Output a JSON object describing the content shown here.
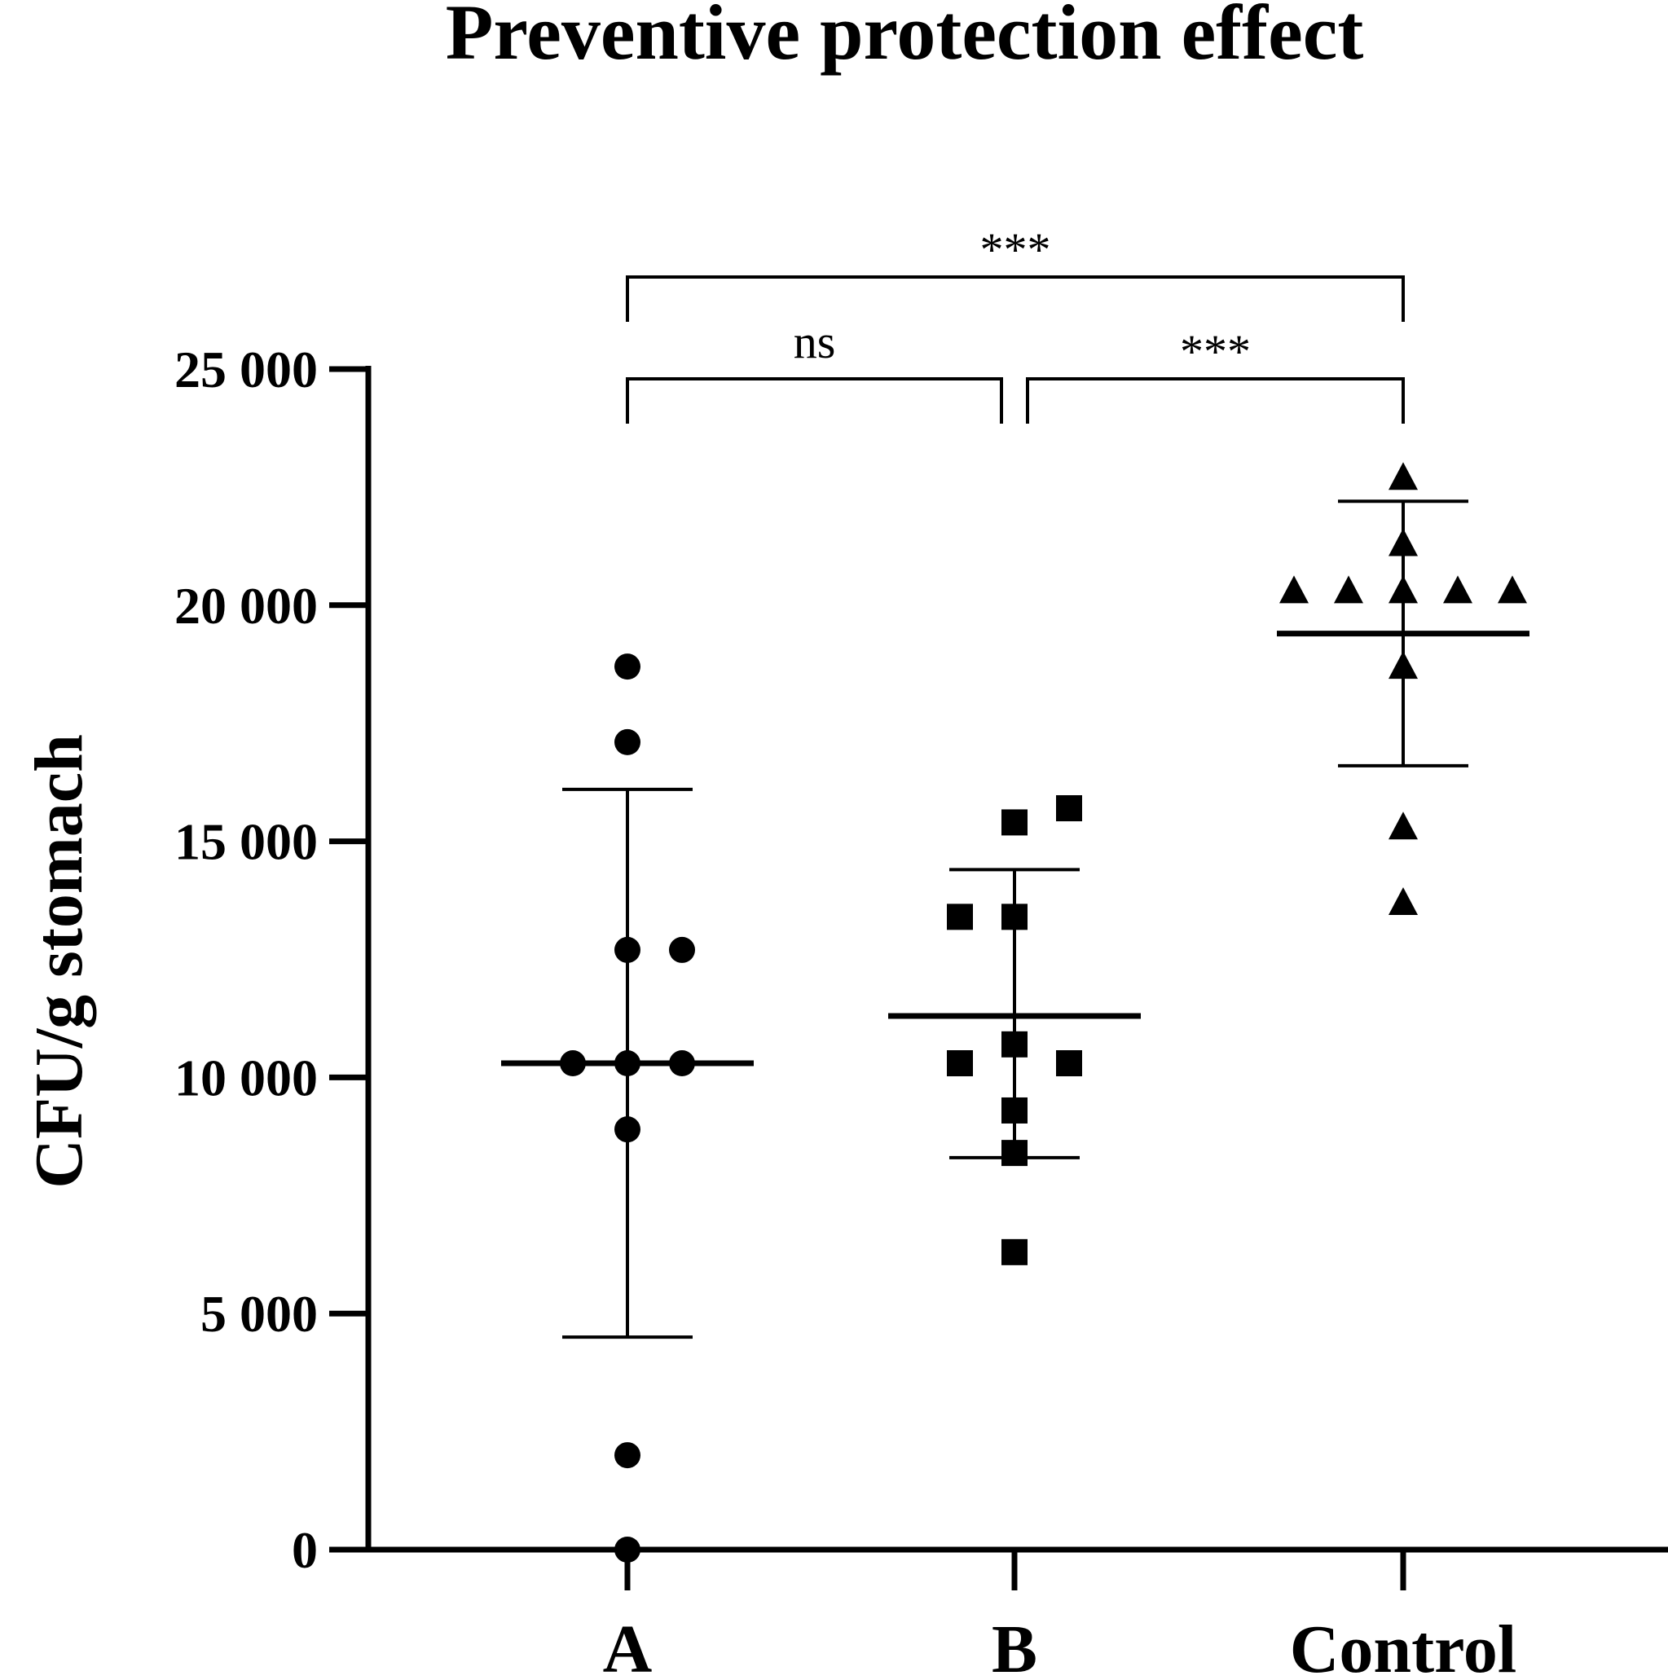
{
  "chart_data": {
    "type": "scatter",
    "title": "Preventive protection effect",
    "xlabel": "",
    "ylabel": "CFU/g stomach",
    "ylim": [
      0,
      25000
    ],
    "yticks": [
      0,
      5000,
      10000,
      15000,
      20000,
      25000
    ],
    "ytick_labels": [
      "0",
      "5 000",
      "10 000",
      "15 000",
      "20 000",
      "25 000"
    ],
    "categories": [
      "A",
      "B",
      "Control"
    ],
    "series": [
      {
        "name": "A",
        "marker": "circle",
        "points": [
          {
            "offset": 0,
            "y": 18700
          },
          {
            "offset": 0,
            "y": 17100
          },
          {
            "offset": 0,
            "y": 12700
          },
          {
            "offset": 1,
            "y": 12700
          },
          {
            "offset": -1,
            "y": 10300
          },
          {
            "offset": 0,
            "y": 10300
          },
          {
            "offset": 1,
            "y": 10300
          },
          {
            "offset": 0,
            "y": 8900
          },
          {
            "offset": 0,
            "y": 2000
          },
          {
            "offset": 0,
            "y": 0
          }
        ],
        "mean": 10300,
        "sd_upper": 16100,
        "sd_lower": 4500
      },
      {
        "name": "B",
        "marker": "square",
        "points": [
          {
            "offset": 1,
            "y": 15700
          },
          {
            "offset": 0,
            "y": 15400
          },
          {
            "offset": -1,
            "y": 13400
          },
          {
            "offset": 0,
            "y": 13400
          },
          {
            "offset": 0,
            "y": 10700
          },
          {
            "offset": -1,
            "y": 10300
          },
          {
            "offset": 1,
            "y": 10300
          },
          {
            "offset": 0,
            "y": 9300
          },
          {
            "offset": 0,
            "y": 8400
          },
          {
            "offset": 0,
            "y": 6300
          }
        ],
        "mean": 11300,
        "sd_upper": 14400,
        "sd_lower": 8300
      },
      {
        "name": "Control",
        "marker": "triangle",
        "points": [
          {
            "offset": 0,
            "y": 22700
          },
          {
            "offset": 0,
            "y": 21300
          },
          {
            "offset": -2,
            "y": 20300
          },
          {
            "offset": -1,
            "y": 20300
          },
          {
            "offset": 0,
            "y": 20300
          },
          {
            "offset": 1,
            "y": 20300
          },
          {
            "offset": 2,
            "y": 20300
          },
          {
            "offset": 0,
            "y": 18700
          },
          {
            "offset": 0,
            "y": 15300
          },
          {
            "offset": 0,
            "y": 13700
          }
        ],
        "mean": 19400,
        "sd_upper": 22200,
        "sd_lower": 16600
      }
    ],
    "significance": [
      {
        "from": "A",
        "to": "B",
        "label": "ns",
        "level": 1
      },
      {
        "from": "B",
        "to": "Control",
        "label": "***",
        "level": 1
      },
      {
        "from": "A",
        "to": "Control",
        "label": "***",
        "level": 2
      }
    ]
  }
}
